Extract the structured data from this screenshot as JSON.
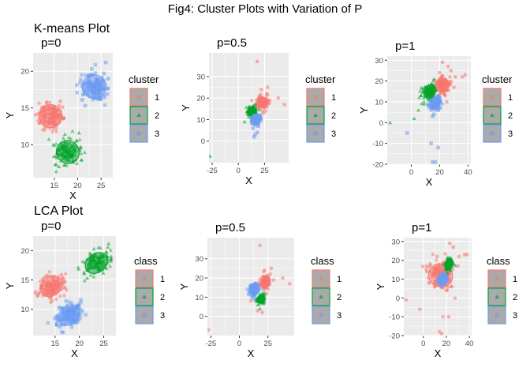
{
  "figure": {
    "title": "Fig4: Cluster Plots with Variation of P"
  },
  "rows": [
    {
      "label": "K-means Plot"
    },
    {
      "label": "LCA Plot"
    }
  ],
  "colors": {
    "1": "#F8766D",
    "2": "#00A32A",
    "3": "#6B9BF2",
    "panel_bg": "#EBEBEB",
    "grid": "#FFFFFF"
  },
  "chart_data": [
    {
      "type": "scatter",
      "method": "K-means",
      "title": "p=0",
      "xlabel": "X",
      "ylabel": "Y",
      "xlim": [
        10.5,
        27.5
      ],
      "ylim": [
        5.5,
        22.5
      ],
      "xticks": [
        15,
        20,
        25
      ],
      "xtick_labels": [
        "15",
        "20",
        "25"
      ],
      "yticks": [
        10,
        15,
        20
      ],
      "ytick_labels": [
        "10",
        "15",
        "20"
      ],
      "legend_title": "cluster",
      "legend_position": "right",
      "grid": true,
      "series": [
        {
          "name": "1",
          "shape": "circle",
          "ellipse": {
            "cx": 14.2,
            "cy": 13.9,
            "rx": 2.4,
            "ry": 1.6,
            "angle": 35
          },
          "points": [
            [
              11.8,
              12.9
            ],
            [
              13.0,
              12.4
            ],
            [
              15.6,
              14.7
            ],
            [
              16.3,
              15.9
            ],
            [
              12.5,
              14.9
            ],
            [
              15.2,
              12.7
            ],
            [
              13.4,
              15.8
            ],
            [
              16.8,
              15.1
            ]
          ]
        },
        {
          "name": "2",
          "shape": "triangle",
          "ellipse": {
            "cx": 17.9,
            "cy": 9.0,
            "rx": 2.4,
            "ry": 1.6,
            "angle": 40
          },
          "points": [
            [
              15.4,
              7.3
            ],
            [
              16.0,
              7.0
            ],
            [
              19.8,
              10.6
            ],
            [
              20.3,
              11.6
            ],
            [
              16.5,
              10.2
            ],
            [
              19.0,
              7.7
            ],
            [
              17.3,
              11.4
            ],
            [
              20.6,
              9.7
            ]
          ]
        },
        {
          "name": "3",
          "shape": "square",
          "ellipse": {
            "cx": 23.5,
            "cy": 17.9,
            "rx": 2.5,
            "ry": 1.6,
            "angle": 38
          },
          "points": [
            [
              21.0,
              16.1
            ],
            [
              21.6,
              15.3
            ],
            [
              25.6,
              19.7
            ],
            [
              26.0,
              21.2
            ],
            [
              22.3,
              19.4
            ],
            [
              24.9,
              16.2
            ],
            [
              23.0,
              20.3
            ],
            [
              26.5,
              19.0
            ]
          ]
        }
      ]
    },
    {
      "type": "scatter",
      "method": "K-means",
      "title": "p=0.5",
      "xlabel": "X",
      "ylabel": "Y",
      "xlim": [
        -28,
        48
      ],
      "ylim": [
        -10,
        41
      ],
      "xticks": [
        -25,
        0,
        25
      ],
      "xtick_labels": [
        "-25",
        "0",
        "25"
      ],
      "yticks": [
        0,
        10,
        20,
        30
      ],
      "ytick_labels": [
        "0",
        "10",
        "20",
        "30"
      ],
      "legend_title": "cluster",
      "legend_position": "right",
      "grid": true,
      "series": [
        {
          "name": "1",
          "shape": "circle",
          "ellipse": {
            "cx": 23,
            "cy": 18,
            "rx": 5,
            "ry": 2.3,
            "angle": 70
          },
          "points": [
            [
              18,
              37
            ],
            [
              24,
              13
            ],
            [
              27,
              22
            ],
            [
              30,
              19
            ],
            [
              38,
              20
            ],
            [
              44,
              17
            ],
            [
              22,
              24
            ],
            [
              26,
              14
            ],
            [
              20,
              21
            ],
            [
              28,
              25
            ]
          ]
        },
        {
          "name": "2",
          "shape": "triangle",
          "ellipse": {
            "cx": 13,
            "cy": 14,
            "rx": 4,
            "ry": 2,
            "angle": 55
          },
          "points": [
            [
              -27,
              -7
            ],
            [
              6,
              9
            ],
            [
              9,
              13
            ],
            [
              12,
              11
            ],
            [
              16,
              17
            ],
            [
              11,
              16
            ],
            [
              14,
              8
            ]
          ]
        },
        {
          "name": "3",
          "shape": "square",
          "ellipse": {
            "cx": 17,
            "cy": 10,
            "rx": 3.5,
            "ry": 1.7,
            "angle": 65
          },
          "points": [
            [
              15,
              2
            ],
            [
              16,
              3
            ],
            [
              19,
              7
            ],
            [
              21,
              12
            ],
            [
              14,
              6
            ],
            [
              18,
              4
            ]
          ]
        }
      ]
    },
    {
      "type": "scatter",
      "method": "K-means",
      "title": "p=1",
      "xlabel": "X",
      "ylabel": "Y",
      "xlim": [
        -17,
        42
      ],
      "ylim": [
        -20,
        32
      ],
      "xticks": [
        0,
        20,
        40
      ],
      "xtick_labels": [
        "0",
        "20",
        "40"
      ],
      "yticks": [
        -20,
        -10,
        0,
        10,
        20,
        30
      ],
      "ytick_labels": [
        "-20",
        "-10",
        "0",
        "10",
        "20",
        "30"
      ],
      "legend_title": "cluster",
      "legend_position": "right",
      "grid": true,
      "series": [
        {
          "name": "1",
          "shape": "circle",
          "ellipse": {
            "cx": 22,
            "cy": 18,
            "rx": 5,
            "ry": 3,
            "angle": 70
          },
          "points": [
            [
              22,
              29
            ],
            [
              26,
              27
            ],
            [
              31,
              22
            ],
            [
              38,
              23
            ],
            [
              36,
              22
            ],
            [
              19,
              13
            ],
            [
              24,
              13
            ],
            [
              28,
              25
            ],
            [
              20,
              24
            ],
            [
              25,
              10
            ],
            [
              30,
              17
            ]
          ]
        },
        {
          "name": "2",
          "shape": "triangle",
          "ellipse": {
            "cx": 13,
            "cy": 15,
            "rx": 5,
            "ry": 2.5,
            "angle": 55
          },
          "points": [
            [
              -15,
              0
            ],
            [
              2,
              2
            ],
            [
              5,
              6
            ],
            [
              9,
              9
            ],
            [
              11,
              17
            ],
            [
              16,
              21
            ],
            [
              7,
              13
            ],
            [
              14,
              12
            ]
          ]
        },
        {
          "name": "3",
          "shape": "square",
          "ellipse": {
            "cx": 17,
            "cy": 9,
            "rx": 4,
            "ry": 2,
            "angle": 60
          },
          "points": [
            [
              -3,
              -5
            ],
            [
              14,
              -10
            ],
            [
              15,
              -19
            ],
            [
              17,
              -19
            ],
            [
              19,
              -12
            ],
            [
              15,
              3
            ],
            [
              16,
              4
            ],
            [
              19,
              6
            ],
            [
              12,
              8
            ],
            [
              20,
              12
            ]
          ]
        }
      ]
    },
    {
      "type": "scatter",
      "method": "LCA",
      "title": "p=0",
      "xlabel": "X",
      "ylabel": "Y",
      "xlim": [
        10.5,
        27.5
      ],
      "ylim": [
        5.5,
        22.5
      ],
      "xticks": [
        15,
        20,
        25
      ],
      "xtick_labels": [
        "15",
        "20",
        "25"
      ],
      "yticks": [
        10,
        15,
        20
      ],
      "ytick_labels": [
        "10",
        "15",
        "20"
      ],
      "legend_title": "class",
      "legend_position": "right",
      "grid": true,
      "series": [
        {
          "name": "1",
          "shape": "circle",
          "ellipse": {
            "cx": 14.2,
            "cy": 13.9,
            "rx": 2.4,
            "ry": 1.6,
            "angle": 35
          },
          "points": [
            [
              11.8,
              12.9
            ],
            [
              13.0,
              12.4
            ],
            [
              15.6,
              14.7
            ],
            [
              16.3,
              15.9
            ],
            [
              12.5,
              14.9
            ],
            [
              15.2,
              12.7
            ],
            [
              13.4,
              15.8
            ],
            [
              16.8,
              15.1
            ]
          ]
        },
        {
          "name": "2",
          "shape": "triangle",
          "ellipse": {
            "cx": 23.5,
            "cy": 17.9,
            "rx": 2.5,
            "ry": 1.6,
            "angle": 38
          },
          "points": [
            [
              21.0,
              16.1
            ],
            [
              21.6,
              15.3
            ],
            [
              25.6,
              19.7
            ],
            [
              26.0,
              21.2
            ],
            [
              22.3,
              19.4
            ],
            [
              24.9,
              16.2
            ],
            [
              23.0,
              20.3
            ],
            [
              26.5,
              19.0
            ]
          ]
        },
        {
          "name": "3",
          "shape": "square",
          "ellipse": {
            "cx": 17.9,
            "cy": 9.0,
            "rx": 2.4,
            "ry": 1.6,
            "angle": 40
          },
          "points": [
            [
              15.4,
              7.3
            ],
            [
              16.0,
              7.0
            ],
            [
              19.8,
              10.6
            ],
            [
              20.3,
              11.6
            ],
            [
              16.5,
              10.2
            ],
            [
              19.0,
              7.7
            ],
            [
              17.3,
              11.4
            ],
            [
              20.6,
              9.7
            ]
          ]
        }
      ]
    },
    {
      "type": "scatter",
      "method": "LCA",
      "title": "p=0.5",
      "xlabel": "X",
      "ylabel": "Y",
      "xlim": [
        -28,
        48
      ],
      "ylim": [
        -10,
        41
      ],
      "xticks": [
        -25,
        0,
        25
      ],
      "xtick_labels": [
        "-25",
        "0",
        "25"
      ],
      "yticks": [
        0,
        10,
        20,
        30
      ],
      "ytick_labels": [
        "0",
        "10",
        "20",
        "30"
      ],
      "legend_title": "class",
      "legend_position": "right",
      "grid": true,
      "series": [
        {
          "name": "1",
          "shape": "circle",
          "ellipse": {
            "cx": 23,
            "cy": 18,
            "rx": 5,
            "ry": 2.3,
            "angle": 70
          },
          "points": [
            [
              -27,
              -7
            ],
            [
              18,
              37
            ],
            [
              27,
              22
            ],
            [
              30,
              19
            ],
            [
              38,
              20
            ],
            [
              44,
              17
            ],
            [
              22,
              24
            ],
            [
              20,
              2
            ],
            [
              16,
              3
            ],
            [
              28,
              25
            ],
            [
              10,
              8
            ]
          ]
        },
        {
          "name": "2",
          "shape": "triangle",
          "ellipse": {
            "cx": 19,
            "cy": 9,
            "rx": 3.5,
            "ry": 1.7,
            "angle": 65
          },
          "points": [
            [
              16,
              6
            ],
            [
              22,
              12
            ],
            [
              18,
              4
            ],
            [
              21,
              7
            ]
          ]
        },
        {
          "name": "3",
          "shape": "square",
          "ellipse": {
            "cx": 13,
            "cy": 14,
            "rx": 4,
            "ry": 2,
            "angle": 65
          },
          "points": [
            [
              11,
              10
            ],
            [
              15,
              17
            ],
            [
              10,
              16
            ],
            [
              13,
              9
            ]
          ]
        }
      ]
    },
    {
      "type": "scatter",
      "method": "LCA",
      "title": "p=1",
      "xlabel": "X",
      "ylabel": "Y",
      "xlim": [
        -17,
        42
      ],
      "ylim": [
        -20,
        32
      ],
      "xticks": [
        0,
        20,
        40
      ],
      "xtick_labels": [
        "0",
        "20",
        "40"
      ],
      "yticks": [
        -20,
        -10,
        0,
        10,
        20,
        30
      ],
      "ytick_labels": [
        "-20",
        "-10",
        "0",
        "10",
        "20",
        "30"
      ],
      "legend_title": "class",
      "legend_position": "right",
      "grid": true,
      "series": [
        {
          "name": "1",
          "shape": "circle",
          "ellipse": {
            "cx": 15,
            "cy": 12,
            "rx": 10,
            "ry": 6.5,
            "angle": 60
          },
          "points": [
            [
              -15,
              -1
            ],
            [
              -3,
              -6
            ],
            [
              14,
              -18
            ],
            [
              16,
              -19
            ],
            [
              17,
              -10
            ],
            [
              22,
              -10
            ],
            [
              23,
              29
            ],
            [
              26,
              27
            ],
            [
              31,
              22
            ],
            [
              38,
              23
            ],
            [
              36,
              23
            ],
            [
              6,
              18
            ],
            [
              9,
              12
            ],
            [
              3,
              14
            ],
            [
              20,
              4
            ],
            [
              24,
              6
            ],
            [
              30,
              17
            ],
            [
              12,
              22
            ]
          ]
        },
        {
          "name": "2",
          "shape": "triangle",
          "ellipse": {
            "cx": 22,
            "cy": 18,
            "rx": 4,
            "ry": 1.8,
            "angle": 70
          },
          "points": [
            [
              20,
              15
            ],
            [
              24,
              21
            ],
            [
              25,
              20
            ],
            [
              21,
              13
            ]
          ]
        },
        {
          "name": "3",
          "shape": "square",
          "ellipse": {
            "cx": 17,
            "cy": 10,
            "rx": 4,
            "ry": 1.8,
            "angle": 70
          },
          "points": [
            [
              16,
              6
            ],
            [
              18,
              13
            ],
            [
              15,
              7
            ],
            [
              19,
              9
            ]
          ]
        }
      ]
    }
  ]
}
